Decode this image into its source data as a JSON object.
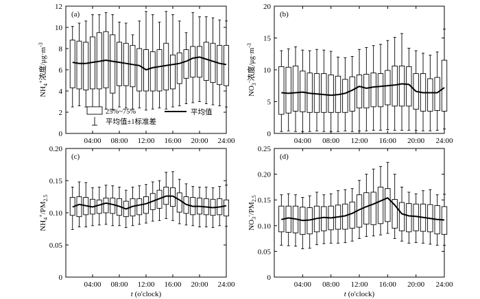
{
  "chart_data": [
    {
      "panel": "(a)",
      "type": "box",
      "ylabel": "NH4+浓度/μg·m-3",
      "ylabel_parts": [
        "NH",
        "4",
        "+",
        "浓度/μg·m",
        "-3"
      ],
      "xlabel": "",
      "ylim": [
        0,
        12
      ],
      "yticks": [
        0,
        2,
        4,
        6,
        8,
        10,
        12
      ],
      "ytick_labels": [
        "0",
        "2",
        "4",
        "6",
        "8",
        "10",
        "12"
      ],
      "xlim": [
        0,
        24
      ],
      "xticks": [
        4,
        8,
        12,
        16,
        20,
        24
      ],
      "xtick_labels": [
        "04:00",
        "08:00",
        "12:00",
        "16:00",
        "20:00",
        "24:00"
      ],
      "hours": [
        1,
        2,
        3,
        4,
        5,
        6,
        7,
        8,
        9,
        10,
        11,
        12,
        13,
        14,
        15,
        16,
        17,
        18,
        19,
        20,
        21,
        22,
        23,
        24
      ],
      "mean": [
        6.7,
        6.6,
        6.6,
        6.7,
        6.8,
        6.9,
        6.8,
        6.7,
        6.6,
        6.5,
        6.4,
        6.0,
        6.2,
        6.3,
        6.4,
        6.5,
        6.6,
        6.8,
        7.1,
        7.2,
        7.0,
        6.8,
        6.6,
        6.5
      ],
      "q1": [
        4.3,
        4.2,
        4.1,
        4.2,
        4.2,
        4.3,
        3.8,
        4.5,
        4.5,
        4.4,
        4.0,
        4.0,
        4.0,
        4.0,
        4.1,
        4.2,
        4.7,
        5.2,
        5.3,
        5.3,
        5.0,
        4.8,
        4.6,
        4.5
      ],
      "q3": [
        8.8,
        8.7,
        8.6,
        9.1,
        9.5,
        9.6,
        9.3,
        8.6,
        8.5,
        8.3,
        8.0,
        7.9,
        7.7,
        7.9,
        8.5,
        7.4,
        7.6,
        7.9,
        8.2,
        8.2,
        8.6,
        8.5,
        8.3,
        8.3
      ],
      "sd_low": [
        2.5,
        2.6,
        2.5,
        2.5,
        2.4,
        2.3,
        2.2,
        2.5,
        2.4,
        2.3,
        2.4,
        2.2,
        2.3,
        2.4,
        2.3,
        2.5,
        2.6,
        2.8,
        2.9,
        3.0,
        2.8,
        2.7,
        2.6,
        2.5
      ],
      "sd_high": [
        10.1,
        10.4,
        10.6,
        11.2,
        11.2,
        11.4,
        11.2,
        10.5,
        10.4,
        9.3,
        10.6,
        11.5,
        11.2,
        10.5,
        11.5,
        11.2,
        10.6,
        9.5,
        11.4,
        11.0,
        11.0,
        10.9,
        10.7,
        10.6
      ],
      "legend": {
        "box": "25%~75%",
        "whisker": "平均值±1标准差",
        "line": "平均值"
      }
    },
    {
      "panel": "(b)",
      "type": "box",
      "ylabel": "NO3-浓度/μg·m-3",
      "ylabel_parts": [
        "NO",
        "3",
        "-",
        "浓度/μg·m",
        "-3"
      ],
      "xlabel": "",
      "ylim": [
        0,
        20
      ],
      "yticks": [
        0,
        5,
        10,
        15,
        20
      ],
      "ytick_labels": [
        "0",
        "5",
        "10",
        "15",
        "20"
      ],
      "xlim": [
        0,
        24
      ],
      "xticks": [
        4,
        8,
        12,
        16,
        20,
        24
      ],
      "xtick_labels": [
        "04:00",
        "08:00",
        "12:00",
        "16:00",
        "20:00",
        "24:00"
      ],
      "hours": [
        1,
        2,
        3,
        4,
        5,
        6,
        7,
        8,
        9,
        10,
        11,
        12,
        13,
        14,
        15,
        16,
        17,
        18,
        19,
        20,
        21,
        22,
        23,
        24
      ],
      "mean": [
        6.4,
        6.3,
        6.4,
        6.5,
        6.3,
        6.2,
        6.1,
        6.0,
        6.1,
        6.3,
        6.8,
        7.4,
        7.1,
        7.3,
        7.4,
        7.5,
        7.6,
        7.8,
        7.7,
        6.6,
        6.4,
        6.4,
        6.4,
        7.2
      ],
      "q1": [
        3.0,
        3.2,
        3.5,
        3.4,
        3.3,
        3.3,
        3.3,
        3.3,
        3.3,
        3.3,
        3.5,
        4.0,
        4.0,
        4.2,
        4.2,
        4.5,
        4.3,
        4.3,
        4.3,
        3.8,
        3.5,
        3.5,
        3.6,
        3.5
      ],
      "q3": [
        10.5,
        10.4,
        10.6,
        9.8,
        9.5,
        9.4,
        9.4,
        9.2,
        9.0,
        8.5,
        8.9,
        9.2,
        9.3,
        9.5,
        9.4,
        9.9,
        10.6,
        10.6,
        10.5,
        9.4,
        9.4,
        8.6,
        8.8,
        11.5
      ],
      "sd_low": [
        0.3,
        0.4,
        0.3,
        0.3,
        0.3,
        0.4,
        0.3,
        0.3,
        0.3,
        0.4,
        0.3,
        0.4,
        0.4,
        0.5,
        0.5,
        0.6,
        0.5,
        0.5,
        0.5,
        0.5,
        0.4,
        0.4,
        0.5,
        0.7
      ],
      "sd_high": [
        13.0,
        13.3,
        13.6,
        13.1,
        13.0,
        13.2,
        13.1,
        12.9,
        12.0,
        11.9,
        12.1,
        13.2,
        13.5,
        13.8,
        14.0,
        14.6,
        15.1,
        15.7,
        13.4,
        13.0,
        12.6,
        12.3,
        12.8,
        16.4
      ]
    },
    {
      "panel": "(c)",
      "type": "box",
      "ylabel": "NH4+/PM2.5",
      "ylabel_parts": [
        "NH",
        "4",
        "+",
        "/PM",
        "2.5",
        ""
      ],
      "xlabel": "t (o'clock)",
      "ylim": [
        0,
        0.2
      ],
      "yticks": [
        0,
        0.05,
        0.1,
        0.15,
        0.2
      ],
      "ytick_labels": [
        "0",
        "0.05",
        "0.10",
        "0.15",
        "0.20"
      ],
      "xlim": [
        0,
        24
      ],
      "xticks": [
        4,
        8,
        12,
        16,
        20,
        24
      ],
      "xtick_labels": [
        "04:00",
        "08:00",
        "12:00",
        "16:00",
        "20:00",
        "24:00"
      ],
      "hours": [
        1,
        2,
        3,
        4,
        5,
        6,
        7,
        8,
        9,
        10,
        11,
        12,
        13,
        14,
        15,
        16,
        17,
        18,
        19,
        20,
        21,
        22,
        23,
        24
      ],
      "mean": [
        0.109,
        0.113,
        0.111,
        0.109,
        0.112,
        0.115,
        0.113,
        0.11,
        0.106,
        0.11,
        0.112,
        0.114,
        0.118,
        0.122,
        0.126,
        0.126,
        0.12,
        0.113,
        0.11,
        0.11,
        0.109,
        0.108,
        0.109,
        0.111
      ],
      "q1": [
        0.096,
        0.094,
        0.097,
        0.098,
        0.099,
        0.1,
        0.099,
        0.096,
        0.094,
        0.095,
        0.097,
        0.099,
        0.105,
        0.107,
        0.113,
        0.11,
        0.101,
        0.099,
        0.097,
        0.098,
        0.097,
        0.096,
        0.097,
        0.095
      ],
      "q3": [
        0.124,
        0.125,
        0.124,
        0.121,
        0.12,
        0.123,
        0.123,
        0.122,
        0.118,
        0.122,
        0.122,
        0.125,
        0.13,
        0.135,
        0.14,
        0.139,
        0.131,
        0.125,
        0.124,
        0.123,
        0.122,
        0.121,
        0.122,
        0.12
      ],
      "sd_low": [
        0.074,
        0.078,
        0.078,
        0.08,
        0.081,
        0.082,
        0.08,
        0.08,
        0.077,
        0.08,
        0.082,
        0.084,
        0.087,
        0.088,
        0.091,
        0.088,
        0.083,
        0.081,
        0.08,
        0.078,
        0.078,
        0.077,
        0.08,
        0.079
      ],
      "sd_high": [
        0.14,
        0.148,
        0.147,
        0.139,
        0.14,
        0.143,
        0.142,
        0.14,
        0.135,
        0.14,
        0.142,
        0.144,
        0.148,
        0.15,
        0.163,
        0.164,
        0.152,
        0.145,
        0.141,
        0.14,
        0.14,
        0.139,
        0.141,
        0.143
      ]
    },
    {
      "panel": "(d)",
      "type": "box",
      "ylabel": "NO3-/PM2.5",
      "ylabel_parts": [
        "NO",
        "3",
        "-",
        "/PM",
        "2.5",
        ""
      ],
      "xlabel": "t (o'clock)",
      "ylim": [
        0,
        0.25
      ],
      "yticks": [
        0,
        0.05,
        0.1,
        0.15,
        0.2,
        0.25
      ],
      "ytick_labels": [
        "0",
        "0.05",
        "0.10",
        "0.15",
        "0.20",
        "0.25"
      ],
      "xlim": [
        0,
        24
      ],
      "xticks": [
        4,
        8,
        12,
        16,
        20,
        24
      ],
      "xtick_labels": [
        "04:00",
        "08:00",
        "12:00",
        "16:00",
        "20:00",
        "24:00"
      ],
      "hours": [
        1,
        2,
        3,
        4,
        5,
        6,
        7,
        8,
        9,
        10,
        11,
        12,
        13,
        14,
        15,
        16,
        17,
        18,
        19,
        20,
        21,
        22,
        23,
        24
      ],
      "mean": [
        0.112,
        0.115,
        0.113,
        0.11,
        0.111,
        0.114,
        0.116,
        0.115,
        0.117,
        0.119,
        0.124,
        0.131,
        0.137,
        0.142,
        0.148,
        0.154,
        0.14,
        0.123,
        0.119,
        0.118,
        0.116,
        0.114,
        0.112,
        0.111
      ],
      "q1": [
        0.088,
        0.087,
        0.086,
        0.083,
        0.084,
        0.088,
        0.09,
        0.092,
        0.093,
        0.093,
        0.095,
        0.097,
        0.103,
        0.102,
        0.104,
        0.108,
        0.095,
        0.09,
        0.088,
        0.09,
        0.089,
        0.088,
        0.084,
        0.083
      ],
      "q3": [
        0.138,
        0.138,
        0.138,
        0.136,
        0.135,
        0.138,
        0.137,
        0.138,
        0.14,
        0.142,
        0.146,
        0.16,
        0.164,
        0.165,
        0.175,
        0.172,
        0.151,
        0.145,
        0.143,
        0.142,
        0.142,
        0.141,
        0.139,
        0.137
      ],
      "sd_low": [
        0.062,
        0.061,
        0.06,
        0.055,
        0.056,
        0.063,
        0.065,
        0.066,
        0.066,
        0.067,
        0.07,
        0.075,
        0.079,
        0.08,
        0.082,
        0.085,
        0.075,
        0.07,
        0.066,
        0.067,
        0.066,
        0.064,
        0.062,
        0.062
      ],
      "sd_high": [
        0.16,
        0.162,
        0.16,
        0.155,
        0.158,
        0.165,
        0.16,
        0.162,
        0.168,
        0.17,
        0.172,
        0.188,
        0.2,
        0.21,
        0.215,
        0.223,
        0.2,
        0.175,
        0.165,
        0.162,
        0.168,
        0.17,
        0.16,
        0.161
      ]
    }
  ]
}
